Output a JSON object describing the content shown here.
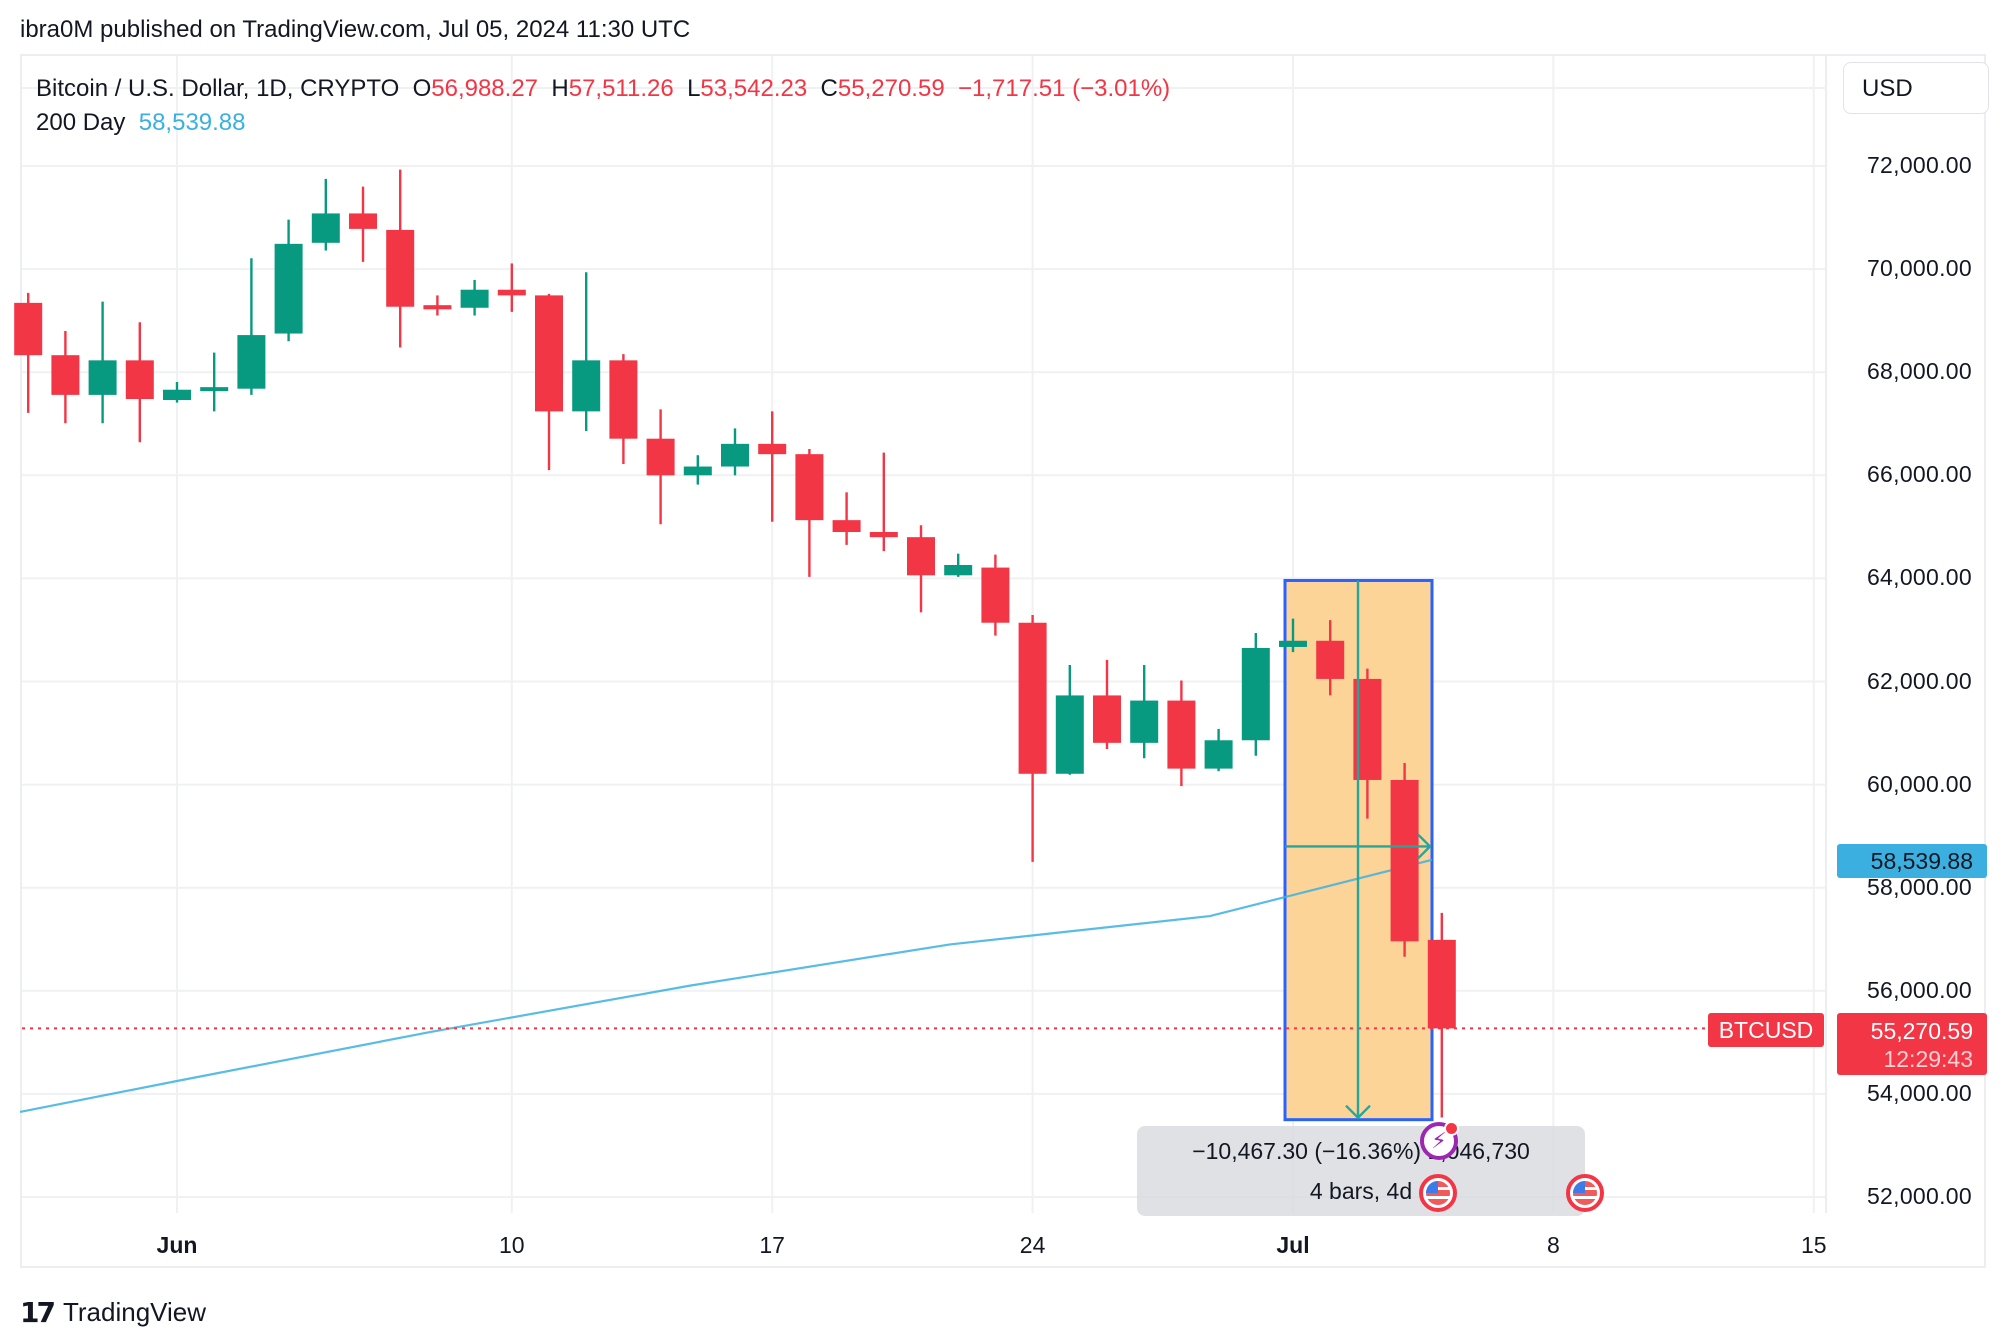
{
  "header": {
    "published_line": "ibra0M published on TradingView.com, Jul 05, 2024 11:30 UTC"
  },
  "legend": {
    "symbol": "Bitcoin / U.S. Dollar, 1D, CRYPTO",
    "open_label": "O",
    "open": "56,988.27",
    "high_label": "H",
    "high": "57,511.26",
    "low_label": "L",
    "low": "53,542.23",
    "close_label": "C",
    "close": "55,270.59",
    "change": "−1,717.51 (−3.01%)",
    "ma_label": "200 Day",
    "ma_value": "58,539.88"
  },
  "currency_button": "USD",
  "price_axis": {
    "labels": [
      "72,000.00",
      "70,000.00",
      "68,000.00",
      "66,000.00",
      "64,000.00",
      "62,000.00",
      "60,000.00",
      "58,000.00",
      "56,000.00",
      "54,000.00",
      "52,000.00"
    ],
    "ma_tag": "58,539.88",
    "symbol_tag": "BTCUSD",
    "last_price_tag": "55,270.59",
    "countdown": "12:29:43"
  },
  "time_axis": {
    "labels": [
      {
        "text": "Jun",
        "bold": true
      },
      {
        "text": "10",
        "bold": false
      },
      {
        "text": "17",
        "bold": false
      },
      {
        "text": "24",
        "bold": false
      },
      {
        "text": "Jul",
        "bold": true
      },
      {
        "text": "8",
        "bold": false
      },
      {
        "text": "15",
        "bold": false
      }
    ]
  },
  "measure_tool": {
    "line1": "−10,467.30 (−16.36%) 1,046,730",
    "line2": "4 bars, 4d"
  },
  "events": {
    "bolt_icon": "⚡",
    "flag_icon": "us-flag"
  },
  "footer": {
    "brand": "TradingView",
    "logo_mark": "17"
  },
  "colors": {
    "up": "#089981",
    "down": "#f23645",
    "ma": "#3bb0e0",
    "range_fill": "#fdd497",
    "range_border": "#2962ff",
    "grid": "#f0f1f3"
  },
  "chart_data": {
    "type": "candlestick",
    "title": "Bitcoin / U.S. Dollar, 1D, CRYPTO",
    "xlabel": "",
    "ylabel": "USD",
    "ylim": [
      51000,
      74000
    ],
    "grid": true,
    "y_ticks": [
      52000,
      54000,
      56000,
      58000,
      60000,
      62000,
      64000,
      66000,
      68000,
      70000,
      72000
    ],
    "x_ticks": [
      "Jun",
      "10",
      "17",
      "24",
      "Jul",
      "8",
      "15"
    ],
    "dates": [
      "May 28",
      "May 29",
      "May 30",
      "May 31",
      "Jun 1",
      "Jun 2",
      "Jun 3",
      "Jun 4",
      "Jun 5",
      "Jun 6",
      "Jun 7",
      "Jun 8",
      "Jun 9",
      "Jun 10",
      "Jun 11",
      "Jun 12",
      "Jun 13",
      "Jun 14",
      "Jun 15",
      "Jun 16",
      "Jun 17",
      "Jun 18",
      "Jun 19",
      "Jun 20",
      "Jun 21",
      "Jun 22",
      "Jun 23",
      "Jun 24",
      "Jun 25",
      "Jun 26",
      "Jun 27",
      "Jun 28",
      "Jun 29",
      "Jun 30",
      "Jul 1",
      "Jul 2",
      "Jul 3",
      "Jul 4",
      "Jul 5"
    ],
    "ohlc": [
      [
        69345,
        69540,
        67210,
        68330
      ],
      [
        68330,
        68800,
        67010,
        67560
      ],
      [
        67560,
        69370,
        67010,
        68230
      ],
      [
        68230,
        68970,
        66640,
        67480
      ],
      [
        67460,
        67810,
        67410,
        67660
      ],
      [
        67680,
        68380,
        67240,
        67710
      ],
      [
        67680,
        70210,
        67560,
        68720
      ],
      [
        68750,
        70960,
        68600,
        70490
      ],
      [
        70510,
        71750,
        70360,
        71080
      ],
      [
        71080,
        71600,
        70140,
        70780
      ],
      [
        70760,
        71930,
        68480,
        69270
      ],
      [
        69300,
        69490,
        69100,
        69220
      ],
      [
        69250,
        69790,
        69100,
        69600
      ],
      [
        69600,
        70110,
        69170,
        69490
      ],
      [
        69490,
        69520,
        66100,
        67240
      ],
      [
        67240,
        69940,
        66860,
        68230
      ],
      [
        68230,
        68350,
        66220,
        66710
      ],
      [
        66710,
        67280,
        65050,
        66000
      ],
      [
        66000,
        66390,
        65820,
        66170
      ],
      [
        66170,
        66910,
        66000,
        66610
      ],
      [
        66610,
        67240,
        65100,
        66410
      ],
      [
        66410,
        66510,
        64030,
        65130
      ],
      [
        65130,
        65670,
        64650,
        64900
      ],
      [
        64900,
        66440,
        64530,
        64800
      ],
      [
        64800,
        65030,
        63340,
        64060
      ],
      [
        64060,
        64480,
        64030,
        64260
      ],
      [
        64210,
        64460,
        62890,
        63140
      ],
      [
        63140,
        63290,
        58500,
        60210
      ],
      [
        60210,
        62320,
        60190,
        61730
      ],
      [
        61730,
        62420,
        60690,
        60810
      ],
      [
        60810,
        62320,
        60510,
        61630
      ],
      [
        61630,
        62020,
        59970,
        60310
      ],
      [
        60310,
        61080,
        60260,
        60860
      ],
      [
        60860,
        62940,
        60560,
        62650
      ],
      [
        62670,
        63220,
        62570,
        62790
      ],
      [
        62790,
        63190,
        61730,
        62050
      ],
      [
        62050,
        62250,
        59340,
        60090
      ],
      [
        60090,
        60420,
        56660,
        56960
      ],
      [
        56988.27,
        57511.26,
        53542.23,
        55270.59
      ]
    ],
    "series": [
      {
        "name": "200 Day MA",
        "type": "line",
        "points": [
          [
            "May 25",
            53650
          ],
          [
            "Jun 1",
            54250
          ],
          [
            "Jun 8",
            55200
          ],
          [
            "Jun 15",
            56100
          ],
          [
            "Jun 22",
            56900
          ],
          [
            "Jun 29",
            57450
          ],
          [
            "Jul 5",
            58540
          ]
        ]
      }
    ],
    "annotations": [
      {
        "type": "price_range",
        "from_date": "Jul 1",
        "to_date": "Jul 4",
        "top": 63960,
        "bottom": 53500,
        "text": "−10,467.30 (−16.36%) 1,046,730 / 4 bars, 4d"
      },
      {
        "type": "hline",
        "value": 55270.59,
        "style": "dotted",
        "label": "BTCUSD 55,270.59"
      }
    ],
    "last_price": 55270.59,
    "ma_last": 58539.88
  }
}
